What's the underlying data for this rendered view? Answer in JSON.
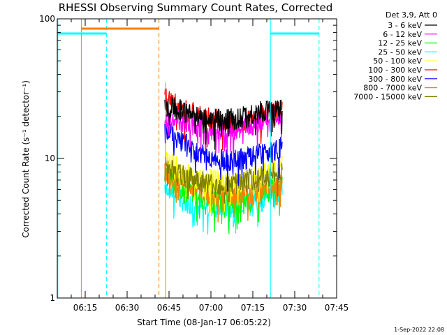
{
  "chart_data": {
    "type": "line",
    "title": "RHESSI Observing Summary Count Rates, Corrected",
    "xlabel": "Start Time (08-Jan-17 06:05:22)",
    "ylabel": "Corrected Count Rate (s⁻¹ detector⁻¹)",
    "y_scale": "log",
    "ylim": [
      1,
      100
    ],
    "y_ticks": [
      {
        "value": 1,
        "label": "1"
      },
      {
        "value": 10,
        "label": "10"
      },
      {
        "value": 100,
        "label": "100"
      }
    ],
    "xlim_minutes": [
      0,
      100
    ],
    "x_ticks": [
      {
        "minutes": 10,
        "label": "06:15"
      },
      {
        "minutes": 25,
        "label": "06:30"
      },
      {
        "minutes": 40,
        "label": "06:45"
      },
      {
        "minutes": 55,
        "label": "07:00"
      },
      {
        "minutes": 70,
        "label": "07:15"
      },
      {
        "minutes": 85,
        "label": "07:30"
      },
      {
        "minutes": 100,
        "label": "07:45"
      }
    ],
    "legend_header": "Det 3,9, Att 0",
    "legend_position": "right",
    "series": [
      {
        "name": "3 - 6 keV",
        "color": "#000000",
        "start": 19,
        "end": 26,
        "values": [
          24,
          22,
          20,
          19,
          19,
          20,
          22,
          22
        ]
      },
      {
        "name": "6 - 12 keV",
        "color": "#ff00ff",
        "start": 19,
        "end": 26,
        "values": [
          20,
          18,
          17,
          16,
          16,
          17,
          19,
          20
        ]
      },
      {
        "name": "12 - 25 keV",
        "color": "#00ff00",
        "start": 19,
        "end": 26,
        "values": [
          8,
          6,
          5.5,
          5,
          5,
          5,
          6,
          7
        ]
      },
      {
        "name": "25 - 50 keV",
        "color": "#00ffff",
        "start": 19,
        "end": 26,
        "values": [
          6.5,
          5,
          4.5,
          4.5,
          4.5,
          5,
          5.5,
          6
        ]
      },
      {
        "name": "50 - 100 keV",
        "color": "#ffff00",
        "start": 19,
        "end": 26,
        "values": [
          10,
          8,
          7,
          7,
          6.5,
          7,
          8,
          9
        ]
      },
      {
        "name": "100 - 300 keV",
        "color": "#ff0000",
        "start": 19,
        "end": 26,
        "values": [
          27,
          23,
          20,
          19,
          18,
          19,
          21,
          22
        ]
      },
      {
        "name": "300 - 800 keV",
        "color": "#0000ff",
        "start": 19,
        "end": 26,
        "values": [
          17,
          13,
          11,
          10,
          9.5,
          10,
          11,
          12
        ]
      },
      {
        "name": "800 - 7000 keV",
        "color": "#ff8000",
        "start": 19,
        "end": 26,
        "values": [
          8,
          7,
          6,
          5.5,
          5.5,
          5.5,
          6,
          6.5
        ]
      },
      {
        "name": "7000 - 15000 keV",
        "color": "#808000",
        "start": 19,
        "end": 26,
        "values": [
          9,
          7.5,
          7,
          6.5,
          6.5,
          7,
          7.5,
          8
        ]
      }
    ],
    "footer_date": "1-Sep-2022 22:08"
  }
}
